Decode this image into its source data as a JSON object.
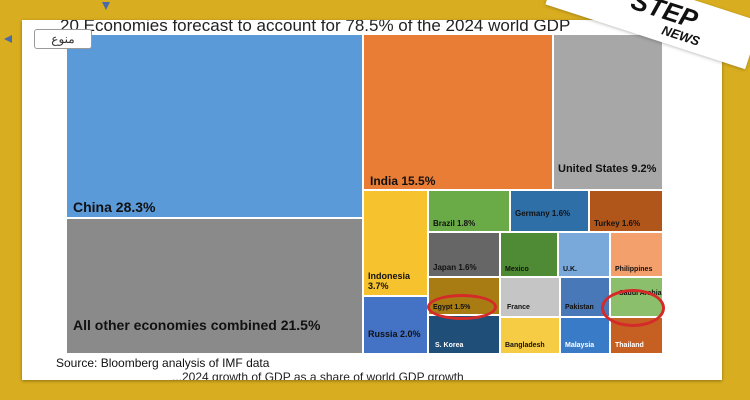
{
  "header": {
    "headline": "20 Economies forecast to account for 78.5% of the 2024 world GDP"
  },
  "tag": {
    "label": "منوع"
  },
  "footer": {
    "source": "Source: Bloomberg analysis of IMF data",
    "subline": "...2024 growth of GDP as a share of world GDP growth"
  },
  "logo": {
    "line1": "STEP",
    "line2": "NEWS"
  },
  "chart_data": {
    "type": "treemap",
    "series": [
      {
        "name": "China",
        "label": "China 28.3%",
        "value": 28.3,
        "color": "#5b9ad8"
      },
      {
        "name": "All other economies combined",
        "label": "All other economies combined 21.5%",
        "value": 21.5,
        "color": "#8a8a8a"
      },
      {
        "name": "India",
        "label": "India 15.5%",
        "value": 15.5,
        "color": "#ea7d35"
      },
      {
        "name": "United States",
        "label": "United States 9.2%",
        "value": 9.2,
        "color": "#a7a7a7"
      },
      {
        "name": "Indonesia",
        "label": "Indonesia 3.7%",
        "value": 3.7,
        "color": "#f6c22d"
      },
      {
        "name": "Russia",
        "label": "Russia 2.0%",
        "value": 2.0,
        "color": "#4472c4"
      },
      {
        "name": "Brazil",
        "label": "Brazil 1.8%",
        "value": 1.8,
        "color": "#6aab47"
      },
      {
        "name": "Germany",
        "label": "Germany 1.6%",
        "value": 1.6,
        "color": "#2f6fa8"
      },
      {
        "name": "Turkey",
        "label": "Turkey 1.6%",
        "value": 1.6,
        "color": "#b0561b"
      },
      {
        "name": "Japan",
        "label": "Japan 1.6%",
        "value": 1.6,
        "color": "#666666"
      },
      {
        "name": "Egypt",
        "label": "Egypt 1.5%",
        "value": 1.5,
        "color": "#a87c12"
      },
      {
        "name": "Mexico",
        "label": "Mexico",
        "color": "#4f8a35"
      },
      {
        "name": "U.K.",
        "label": "U.K.",
        "color": "#79a8db"
      },
      {
        "name": "Philippines",
        "label": "Philippines",
        "color": "#f3a06d"
      },
      {
        "name": "France",
        "label": "France",
        "color": "#c5c5c5"
      },
      {
        "name": "Pakistan",
        "label": "Pakistan",
        "color": "#4878b8"
      },
      {
        "name": "Saudi Arabia",
        "label": "Saudi Arabia",
        "color": "#8cbf6c"
      },
      {
        "name": "S. Korea",
        "label": "S. Korea",
        "color": "#1f4e79"
      },
      {
        "name": "Bangladesh",
        "label": "Bangladesh",
        "color": "#f7cc45"
      },
      {
        "name": "Malaysia",
        "label": "Malaysia",
        "color": "#3a7bc8"
      },
      {
        "name": "Thailand",
        "label": "Thailand",
        "color": "#c65f22"
      }
    ],
    "highlighted": [
      "Egypt",
      "Saudi Arabia"
    ],
    "highlight_color": "#d42a2a"
  }
}
